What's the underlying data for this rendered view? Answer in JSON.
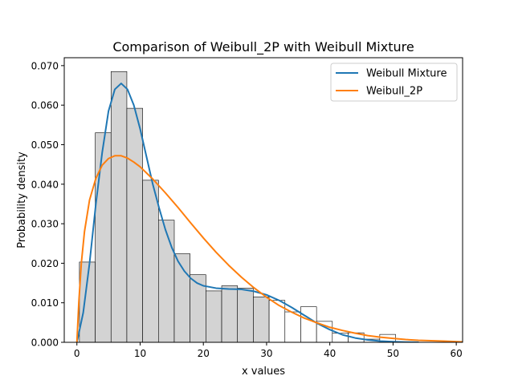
{
  "chart_data": {
    "type": "histogram+line",
    "title": "Comparison of Weibull_2P with Weibull Mixture",
    "xlabel": "x values",
    "ylabel": "Probability density",
    "xlim": [
      -2,
      61
    ],
    "ylim": [
      0,
      0.072
    ],
    "x_ticks": [
      0,
      10,
      20,
      30,
      40,
      50,
      60
    ],
    "y_ticks": [
      0.0,
      0.01,
      0.02,
      0.03,
      0.04,
      0.05,
      0.06,
      0.07
    ],
    "y_tick_labels": [
      "0.000",
      "0.010",
      "0.020",
      "0.030",
      "0.040",
      "0.050",
      "0.060",
      "0.070"
    ],
    "legend_position": "top-right",
    "histogram": {
      "bin_edges": [
        0.4,
        2.9,
        5.4,
        7.9,
        10.4,
        12.9,
        15.4,
        17.9,
        20.4,
        22.9,
        25.4,
        27.9,
        30.4,
        32.9,
        35.4,
        37.9,
        40.4,
        42.9,
        45.4,
        47.9,
        50.4
      ],
      "densities": [
        0.0203,
        0.053,
        0.0685,
        0.0592,
        0.041,
        0.0309,
        0.0224,
        0.0171,
        0.013,
        0.0143,
        0.0137,
        0.0115,
        0.0106,
        0.0077,
        0.009,
        0.0053,
        0.0023,
        0.0024,
        0.0008,
        0.002
      ],
      "filled_color": "#d3d3d3",
      "unfilled_color": "#ffffff",
      "filled_bins": 12
    },
    "series": [
      {
        "name": "Weibull Mixture",
        "color": "#1f77b4",
        "x": [
          0,
          1,
          2,
          3,
          4,
          5,
          6,
          7,
          8,
          9,
          10,
          11,
          12,
          13,
          14,
          15,
          16,
          17,
          18,
          19,
          20,
          22,
          24,
          26,
          28,
          30,
          32,
          34,
          36,
          38,
          40,
          42,
          44,
          46,
          48,
          50,
          52,
          54
        ],
        "y": [
          0.0,
          0.0075,
          0.02,
          0.035,
          0.048,
          0.0585,
          0.064,
          0.0655,
          0.064,
          0.06,
          0.054,
          0.047,
          0.04,
          0.034,
          0.0285,
          0.024,
          0.0205,
          0.018,
          0.0162,
          0.015,
          0.0143,
          0.0137,
          0.0135,
          0.0134,
          0.0129,
          0.012,
          0.0106,
          0.0088,
          0.0068,
          0.0048,
          0.0032,
          0.0019,
          0.0011,
          0.0006,
          0.0003,
          0.00015,
          6e-05,
          0.0
        ]
      },
      {
        "name": "Weibull_2P",
        "color": "#ff7f0e",
        "x": [
          0,
          0.3,
          0.7,
          1.2,
          2,
          3,
          4,
          5,
          6,
          7,
          8,
          9,
          10,
          12,
          14,
          16,
          18,
          20,
          22,
          24,
          26,
          28,
          30,
          32,
          34,
          36,
          38,
          40,
          42,
          44,
          46,
          48,
          50,
          52,
          54,
          56,
          58,
          61
        ],
        "y": [
          0.0,
          0.01,
          0.02,
          0.028,
          0.036,
          0.0415,
          0.0448,
          0.0465,
          0.0472,
          0.0472,
          0.0466,
          0.0456,
          0.0444,
          0.0413,
          0.0378,
          0.0341,
          0.0302,
          0.0264,
          0.0228,
          0.0195,
          0.0165,
          0.0138,
          0.0114,
          0.0093,
          0.0076,
          0.0061,
          0.0049,
          0.0038,
          0.003,
          0.0023,
          0.0017,
          0.0013,
          0.001,
          0.0007,
          0.0005,
          0.0004,
          0.0003,
          0.0001
        ]
      }
    ]
  }
}
